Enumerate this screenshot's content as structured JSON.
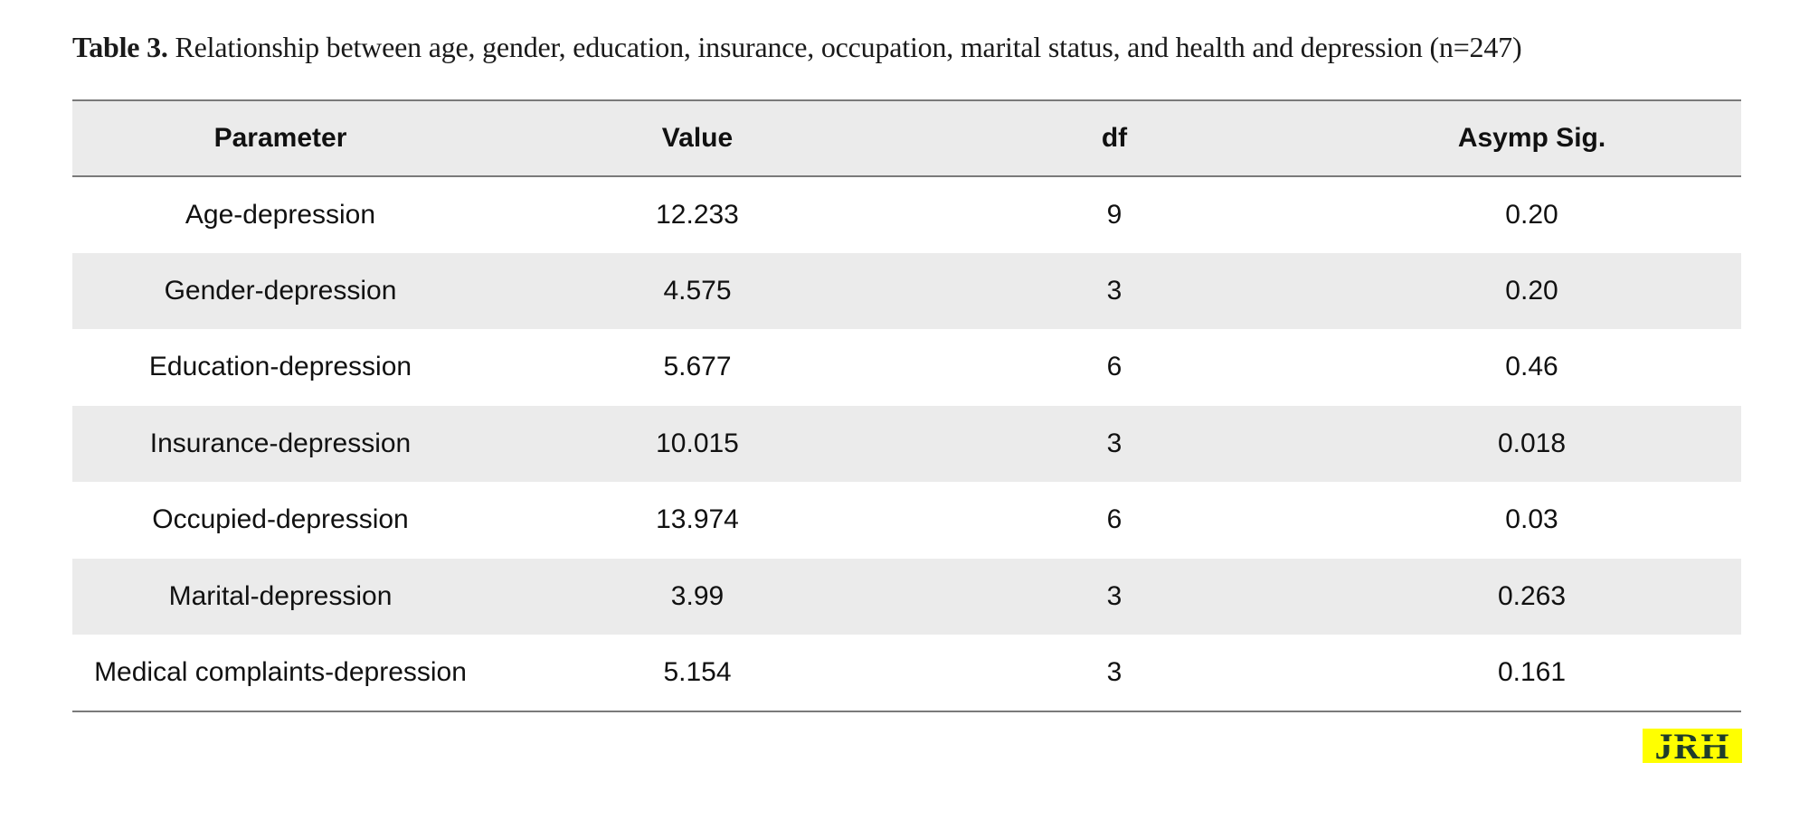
{
  "caption": {
    "label": "Table 3.",
    "text": "Relationship between age, gender, education, insurance, occupation, marital status, and health and depression (n=247)"
  },
  "table": {
    "headers": [
      "Parameter",
      "Value",
      "df",
      "Asymp Sig."
    ],
    "rows": [
      [
        "Age-depression",
        "12.233",
        "9",
        "0.20"
      ],
      [
        "Gender-depression",
        "4.575",
        "3",
        "0.20"
      ],
      [
        "Education-depression",
        "5.677",
        "6",
        "0.46"
      ],
      [
        "Insurance-depression",
        "10.015",
        "3",
        "0.018"
      ],
      [
        "Occupied-depression",
        "13.974",
        "6",
        "0.03"
      ],
      [
        "Marital-depression",
        "3.99",
        "3",
        "0.263"
      ],
      [
        "Medical complaints-depression",
        "5.154",
        "3",
        "0.161"
      ]
    ]
  },
  "logo": {
    "text": "JRH",
    "colors": {
      "background": "#ffff00",
      "letters": "#1f3d2b"
    }
  }
}
